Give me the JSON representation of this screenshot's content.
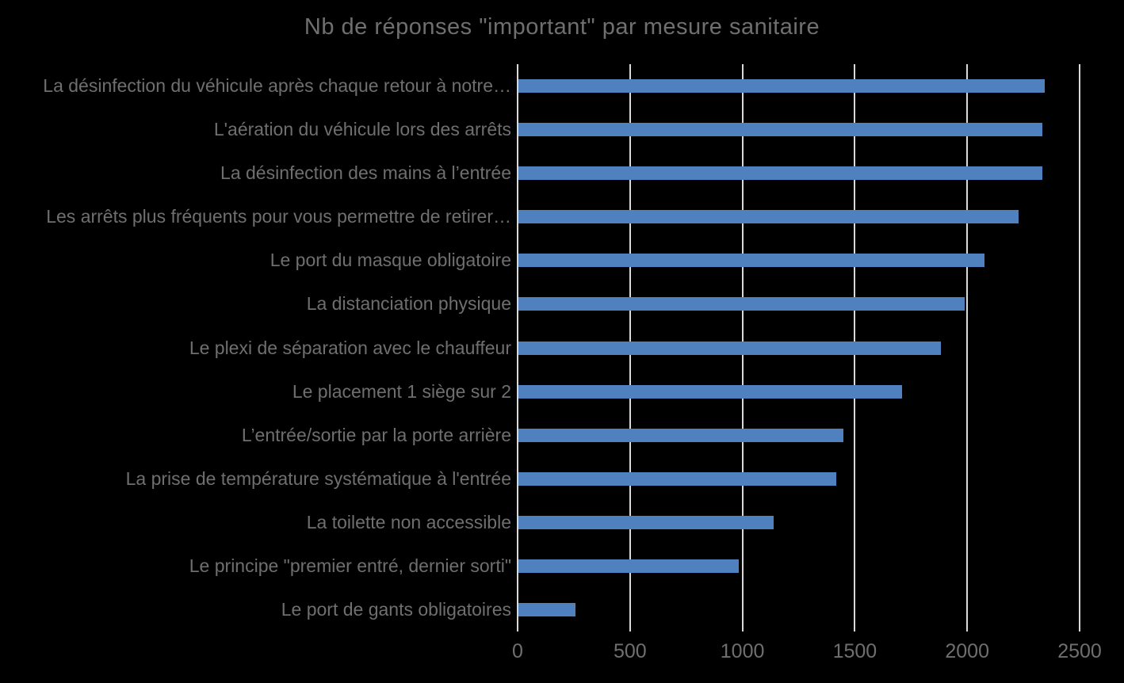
{
  "chart_data": {
    "type": "bar",
    "orientation": "horizontal",
    "title": "Nb de réponses \"important\" par mesure sanitaire",
    "categories": [
      "La désinfection du véhicule après chaque retour à notre…",
      "L'aération du véhicule lors des arrêts",
      "La désinfection des mains à l’entrée",
      "Les arrêts plus fréquents pour vous permettre de retirer…",
      "Le port du masque obligatoire",
      "La distanciation physique",
      "Le plexi de séparation avec le chauffeur",
      "Le placement 1 siège sur 2",
      "L’entrée/sortie par la porte arrière",
      "La prise de température systématique à l'entrée",
      "La toilette non accessible",
      "Le principe \"premier entré, dernier sorti\"",
      "Le port de gants obligatoires"
    ],
    "values": [
      2340,
      2330,
      2330,
      2225,
      2075,
      1985,
      1880,
      1705,
      1445,
      1415,
      1135,
      980,
      255
    ],
    "xlabel": "",
    "ylabel": "",
    "x_ticks": [
      0,
      500,
      1000,
      1500,
      2000,
      2500
    ],
    "xlim": [
      0,
      2500
    ],
    "grid": true,
    "legend": false,
    "colors": {
      "bar": "#4e81bd",
      "background": "#000000",
      "text": "#6f6f6f",
      "gridline": "#d9d9d9"
    }
  }
}
